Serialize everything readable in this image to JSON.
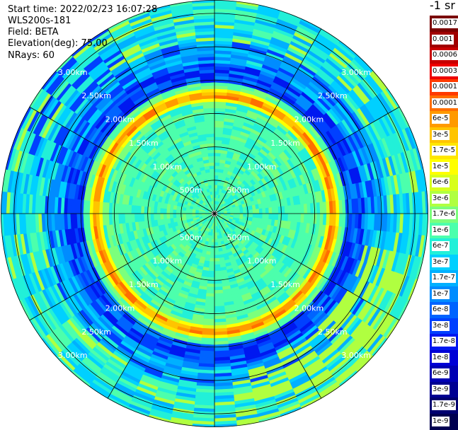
{
  "header": {
    "start_time": "Start time: 2022/02/23 16:07:28",
    "instrument": "WLS200s-181",
    "field": "Field: BETA",
    "elevation": "Elevation(deg): 75.00",
    "nrays": "NRays: 60"
  },
  "colorbar": {
    "units": "-1 sr",
    "labels": [
      "0.0017",
      "0.001",
      "0.0006",
      "0.0003",
      "0.00017",
      "0.0001",
      "6e-5",
      "3e-5",
      "1.7e-5",
      "1e-5",
      "6e-6",
      "3e-6",
      "1.7e-6",
      "1e-6",
      "6e-7",
      "3e-7",
      "1.7e-7",
      "1e-7",
      "6e-8",
      "3e-8",
      "1.7e-8",
      "1e-8",
      "6e-9",
      "3e-9",
      "1.7e-9",
      "1e-9"
    ],
    "colors": [
      "#7a0000",
      "#a00000",
      "#c80000",
      "#ee0000",
      "#ff3a00",
      "#ff6e00",
      "#ff9a00",
      "#ffc400",
      "#ffe600",
      "#ffff00",
      "#d8ff1c",
      "#b0ff40",
      "#7cff7c",
      "#4cffac",
      "#22f0d8",
      "#00d0ff",
      "#00b0ff",
      "#008cff",
      "#0064ff",
      "#0040ff",
      "#0018f0",
      "#0000d6",
      "#0000b4",
      "#000092",
      "#000070",
      "#000050"
    ]
  },
  "range_labels": [
    "500m",
    "1.00km",
    "1.50km",
    "2.00km",
    "2.50km",
    "3.00km"
  ],
  "plot": {
    "range_rings_km": [
      0.5,
      1.0,
      1.5,
      2.0,
      2.5,
      3.0
    ],
    "max_range_km": 3.2,
    "radial_spokes_deg": 30
  }
}
